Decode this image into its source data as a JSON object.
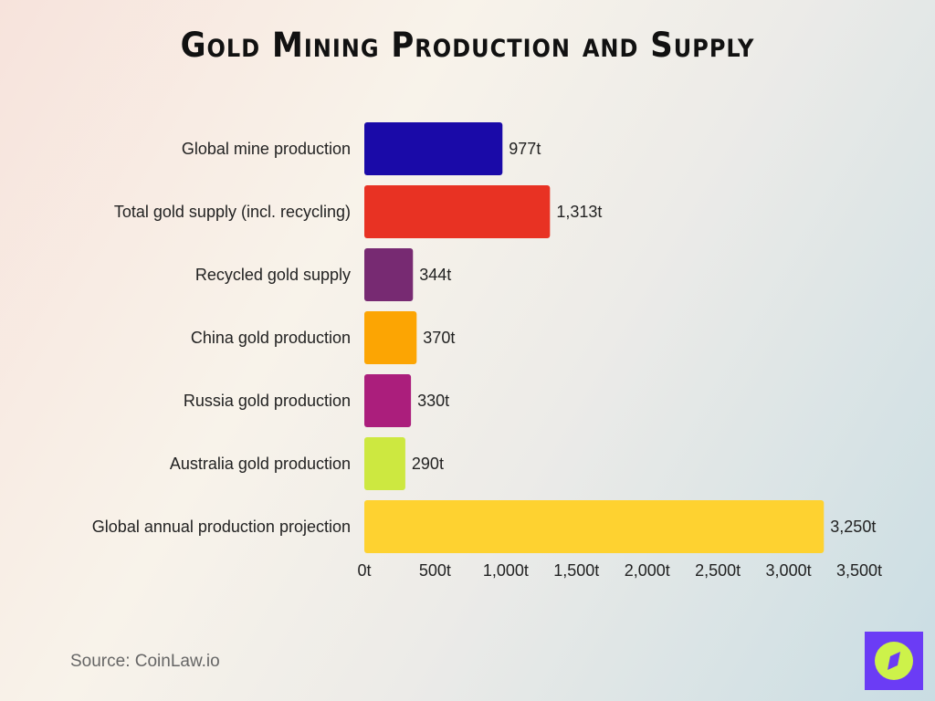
{
  "chart_data": {
    "type": "bar",
    "orientation": "horizontal",
    "title": "Gold Mining Production and Supply",
    "categories": [
      "Global mine production",
      "Total gold supply (incl. recycling)",
      "Recycled gold supply",
      "China gold production",
      "Russia gold production",
      "Australia gold production",
      "Global annual production projection"
    ],
    "values": [
      977,
      1313,
      344,
      370,
      330,
      290,
      3250
    ],
    "data_labels": [
      "977t",
      "1,313t",
      "344t",
      "370t",
      "330t",
      "290t",
      "3,250t"
    ],
    "colors": [
      "#1a0aa8",
      "#e83223",
      "#772a72",
      "#fca503",
      "#ab1e7c",
      "#cde840",
      "#fed230"
    ],
    "xlim": [
      0,
      3500
    ],
    "ticks": [
      0,
      500,
      1000,
      1500,
      2000,
      2500,
      3000,
      3500
    ],
    "tick_labels": [
      "0t",
      "500t",
      "1,000t",
      "1,500t",
      "2,000t",
      "2,500t",
      "3,000t",
      "3,500t"
    ],
    "xlabel": "",
    "ylabel": "",
    "grid": false,
    "legend": "none"
  },
  "source": "Source: CoinLaw.io",
  "logo": {
    "icon": "compass-icon",
    "bg": "#6b3cf5",
    "fg": "#cdf24a"
  }
}
